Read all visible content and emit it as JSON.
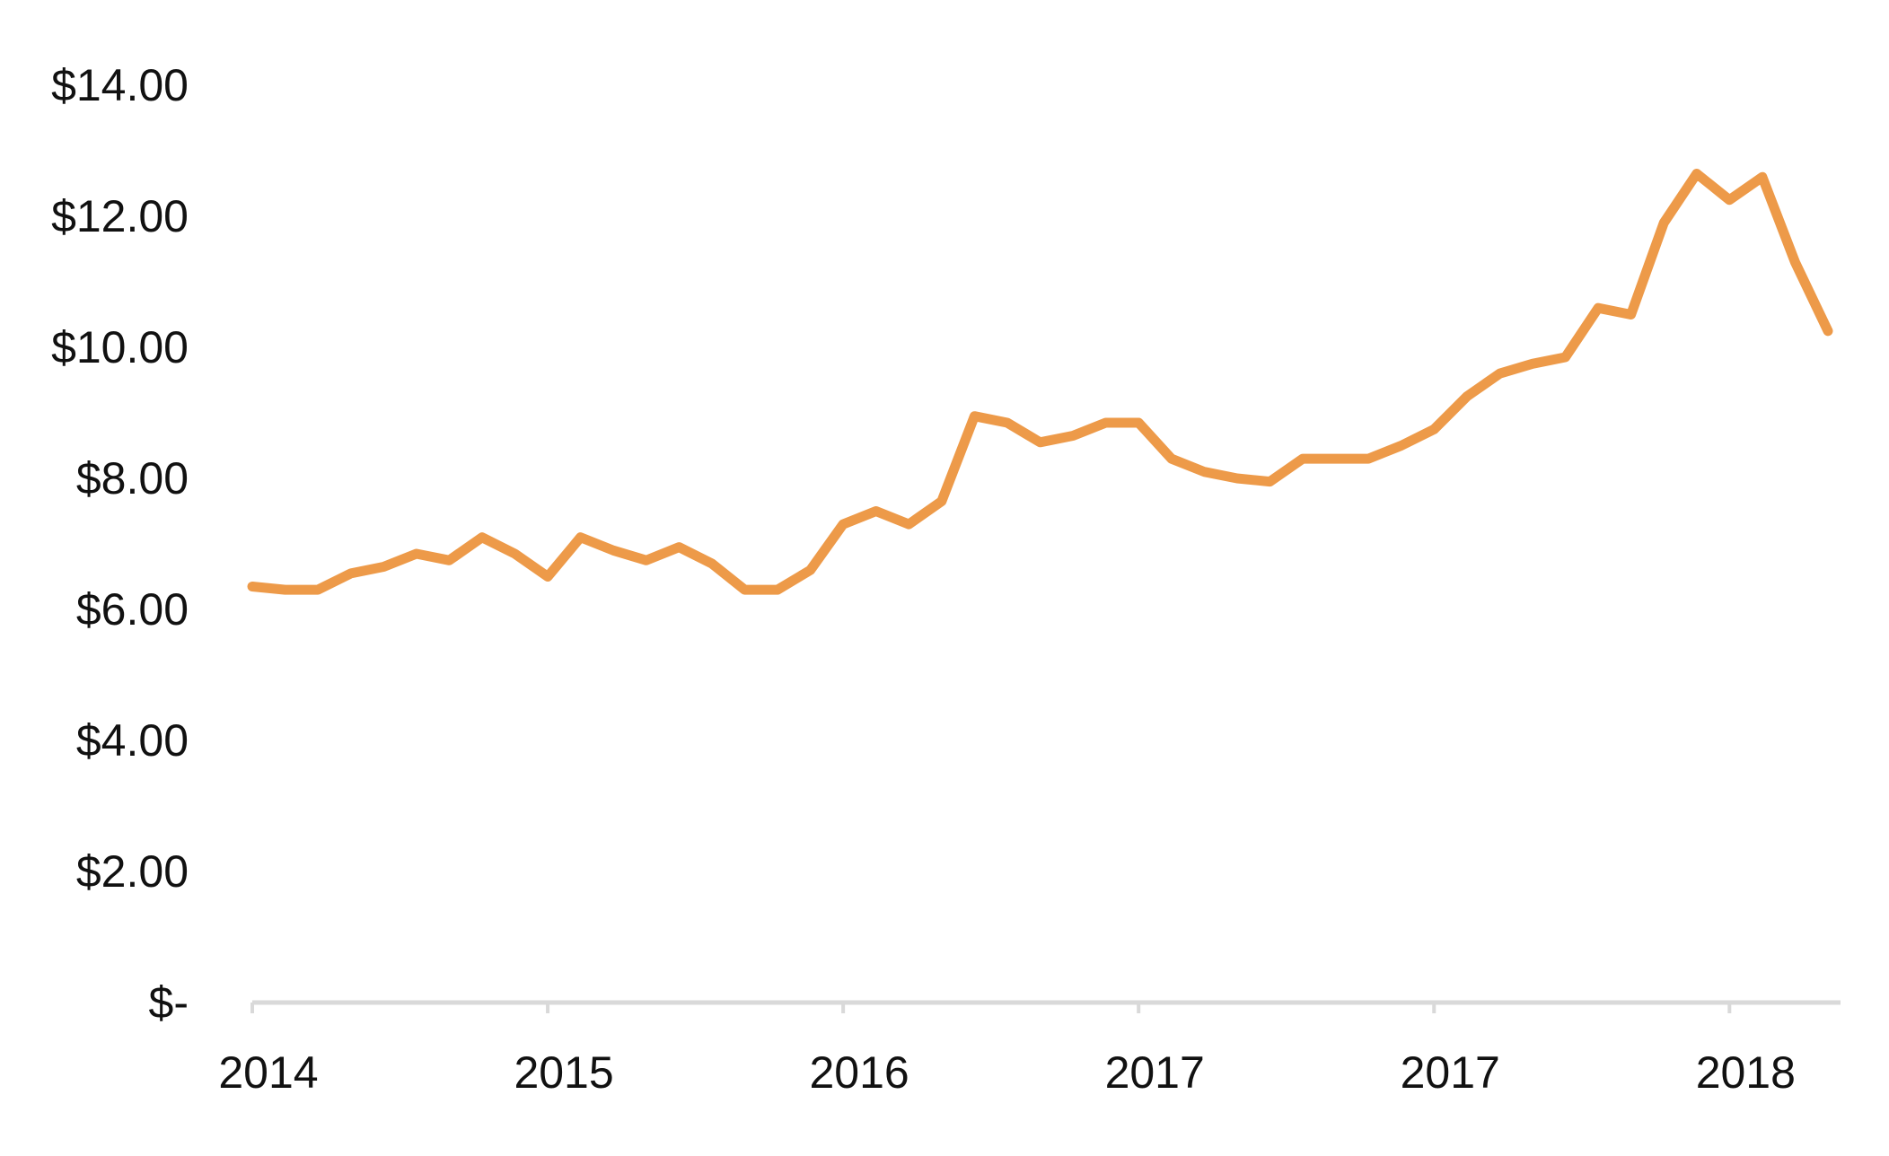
{
  "chart_data": {
    "type": "line",
    "title": "",
    "xlabel": "",
    "ylabel": "",
    "ylim": [
      0,
      14
    ],
    "yticks": [
      0,
      2,
      4,
      6,
      8,
      10,
      12,
      14
    ],
    "ytick_labels": [
      "$-",
      "$2.00",
      "$4.00",
      "$6.00",
      "$8.00",
      "$10.00",
      "$12.00",
      "$14.00"
    ],
    "xtick_labels": [
      "2014",
      "2015",
      "2016",
      "2017",
      "2017",
      "2018"
    ],
    "xtick_positions": [
      0,
      9,
      18,
      27,
      36,
      45
    ],
    "grid": false,
    "legend": "none",
    "line_color": "#ED9A49",
    "axis_color": "#D9D9D9",
    "series": [
      {
        "values": [
          6.35,
          6.3,
          6.3,
          6.55,
          6.65,
          6.85,
          6.75,
          7.1,
          6.85,
          6.5,
          7.1,
          6.9,
          6.75,
          6.95,
          6.7,
          6.3,
          6.3,
          6.6,
          7.3,
          7.5,
          7.3,
          7.65,
          8.95,
          8.85,
          8.55,
          8.65,
          8.85,
          8.85,
          8.3,
          8.1,
          8.0,
          7.95,
          8.3,
          8.3,
          8.3,
          8.5,
          8.75,
          9.25,
          9.6,
          9.75,
          9.85,
          10.6,
          10.5,
          11.9,
          12.65,
          12.25,
          12.6,
          11.3,
          10.25
        ]
      }
    ]
  }
}
